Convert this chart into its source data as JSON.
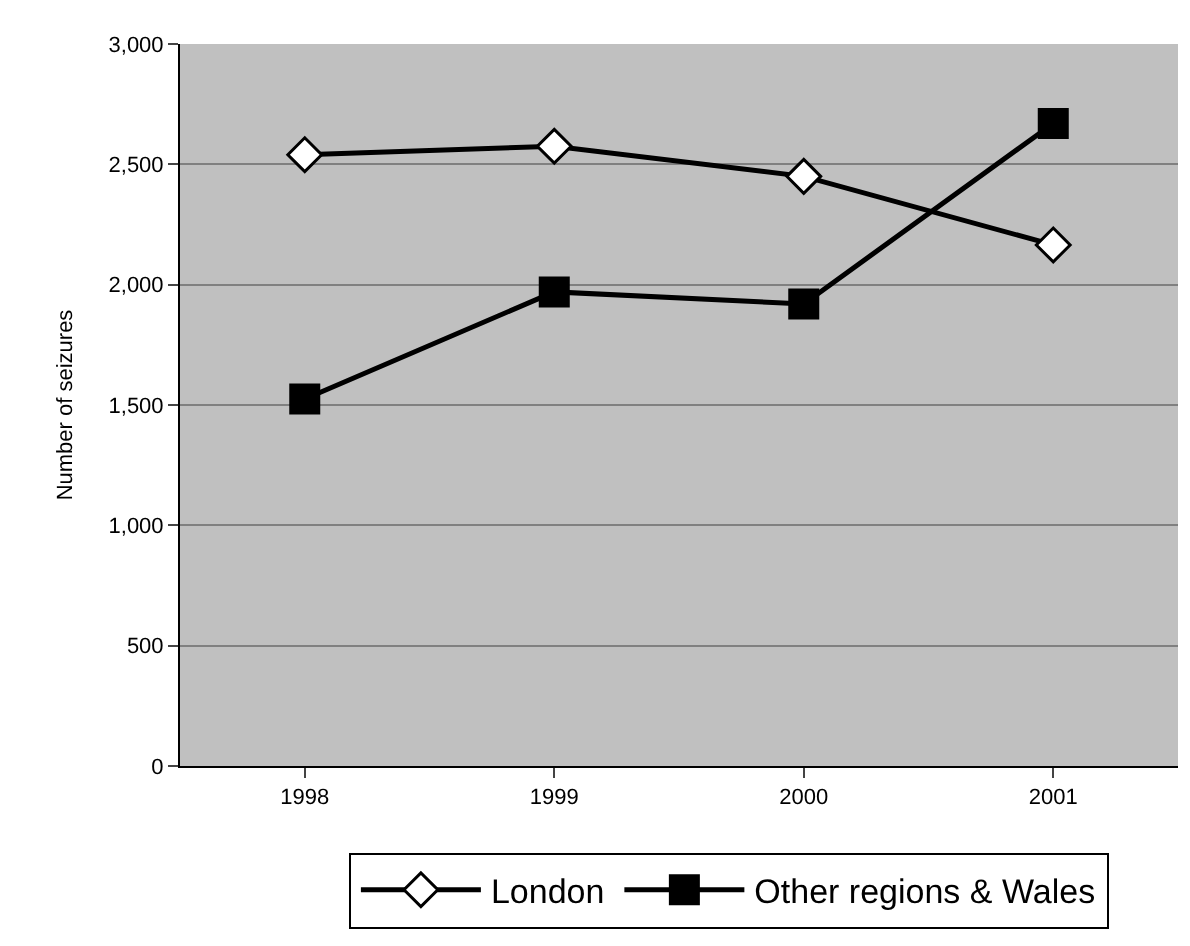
{
  "chart_data": {
    "type": "line",
    "ylabel": "Number of seizures",
    "categories": [
      "1998",
      "1999",
      "2000",
      "2001"
    ],
    "series": [
      {
        "name": "London",
        "color": "#000000",
        "marker": "diamond",
        "values": [
          2540,
          2575,
          2450,
          2165
        ]
      },
      {
        "name": "Other regions & Wales",
        "color": "#000000",
        "marker": "square",
        "values": [
          1525,
          1970,
          1920,
          2670
        ]
      }
    ],
    "ylim": [
      0,
      3000
    ],
    "yticks": [
      {
        "value": 0,
        "label": "0"
      },
      {
        "value": 500,
        "label": "500"
      },
      {
        "value": 1000,
        "label": "1,000"
      },
      {
        "value": 1500,
        "label": "1,500"
      },
      {
        "value": 2000,
        "label": "2,000"
      },
      {
        "value": 2500,
        "label": "2,500"
      },
      {
        "value": 3000,
        "label": "3,000"
      }
    ],
    "grid": "y",
    "legend": "bottom",
    "line_style": "solid"
  }
}
